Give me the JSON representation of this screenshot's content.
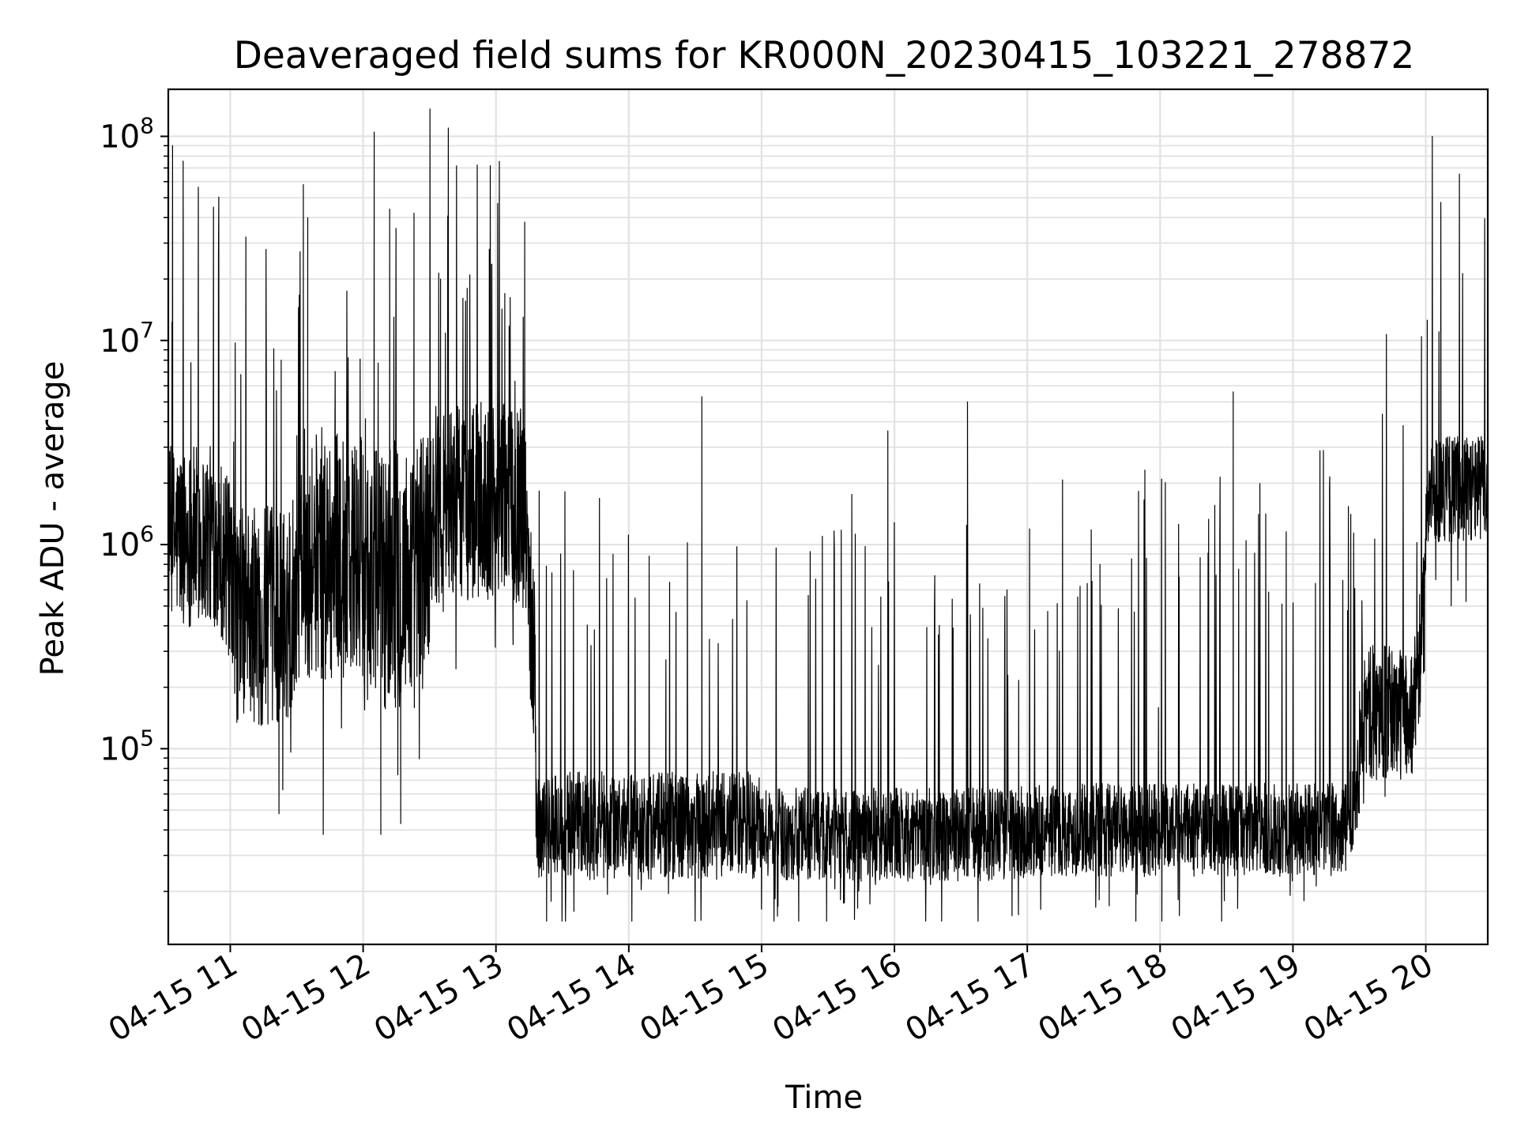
{
  "chart_data": {
    "type": "line",
    "title": "Deaveraged field sums for KR000N_20230415_103221_278872",
    "xlabel": "Time",
    "ylabel": "Peak ADU - average",
    "yscale": "log",
    "ylim": [
      11000,
      170000000
    ],
    "xlim": [
      "2023-04-15 10:32",
      "2023-04-15 20:28"
    ],
    "grid": true,
    "legend": "none",
    "line_color": "#000000",
    "x_ticks": [
      {
        "t": "2023-04-15 11:00",
        "label": "04-15 11"
      },
      {
        "t": "2023-04-15 12:00",
        "label": "04-15 12"
      },
      {
        "t": "2023-04-15 13:00",
        "label": "04-15 13"
      },
      {
        "t": "2023-04-15 14:00",
        "label": "04-15 14"
      },
      {
        "t": "2023-04-15 15:00",
        "label": "04-15 15"
      },
      {
        "t": "2023-04-15 16:00",
        "label": "04-15 16"
      },
      {
        "t": "2023-04-15 17:00",
        "label": "04-15 17"
      },
      {
        "t": "2023-04-15 18:00",
        "label": "04-15 18"
      },
      {
        "t": "2023-04-15 19:00",
        "label": "04-15 19"
      },
      {
        "t": "2023-04-15 20:00",
        "label": "04-15 20"
      }
    ],
    "y_ticks": [
      {
        "value": 100000,
        "base": "10",
        "exp": "5"
      },
      {
        "value": 1000000,
        "base": "10",
        "exp": "6"
      },
      {
        "value": 10000000,
        "base": "10",
        "exp": "7"
      },
      {
        "value": 100000000,
        "base": "10",
        "exp": "8"
      }
    ],
    "segments": [
      {
        "start": "10:32",
        "end": "11:00",
        "base": 1100000,
        "spread": 2.2
      },
      {
        "start": "11:00",
        "end": "11:30",
        "base": 450000,
        "spread": 2.6
      },
      {
        "start": "11:30",
        "end": "12:00",
        "base": 900000,
        "spread": 3.0
      },
      {
        "start": "12:00",
        "end": "12:30",
        "base": 700000,
        "spread": 3.2
      },
      {
        "start": "12:30",
        "end": "13:18",
        "base": 1600000,
        "spread": 2.4
      },
      {
        "start": "13:18",
        "end": "15:00",
        "base": 42000,
        "spread": 1.6
      },
      {
        "start": "15:00",
        "end": "17:00",
        "base": 38000,
        "spread": 1.5
      },
      {
        "start": "17:00",
        "end": "19:30",
        "base": 40000,
        "spread": 1.5
      },
      {
        "start": "19:30",
        "end": "20:00",
        "base": 150000,
        "spread": 1.8
      },
      {
        "start": "20:00",
        "end": "20:28",
        "base": 1900000,
        "spread": 1.6
      }
    ],
    "spikes": [
      {
        "t": "11:33",
        "value": 58000000
      },
      {
        "t": "11:35",
        "value": 40000000
      },
      {
        "t": "12:05",
        "value": 105000000
      },
      {
        "t": "12:12",
        "value": 44000000
      },
      {
        "t": "12:23",
        "value": 42000000
      },
      {
        "t": "12:57",
        "value": 28000000
      },
      {
        "t": "13:13",
        "value": 38000000
      },
      {
        "t": "14:33",
        "value": 5300000
      },
      {
        "t": "15:57",
        "value": 3600000
      },
      {
        "t": "16:33",
        "value": 5000000
      },
      {
        "t": "18:33",
        "value": 5600000
      },
      {
        "t": "20:28",
        "value": 27000000
      },
      {
        "t": "11:23",
        "value": 8000000
      },
      {
        "t": "12:35",
        "value": 20000000
      },
      {
        "t": "12:47",
        "value": 18000000
      },
      {
        "t": "13:04",
        "value": 17000000
      }
    ],
    "dips": [
      {
        "t": "11:22",
        "value": 48000
      },
      {
        "t": "11:42",
        "value": 38000
      },
      {
        "t": "12:08",
        "value": 38000
      },
      {
        "t": "12:17",
        "value": 43000
      },
      {
        "t": "17:37",
        "value": 17000
      },
      {
        "t": "18:35",
        "value": 16500
      },
      {
        "t": "19:05",
        "value": 18000
      },
      {
        "t": "15:37",
        "value": 17500
      }
    ]
  }
}
